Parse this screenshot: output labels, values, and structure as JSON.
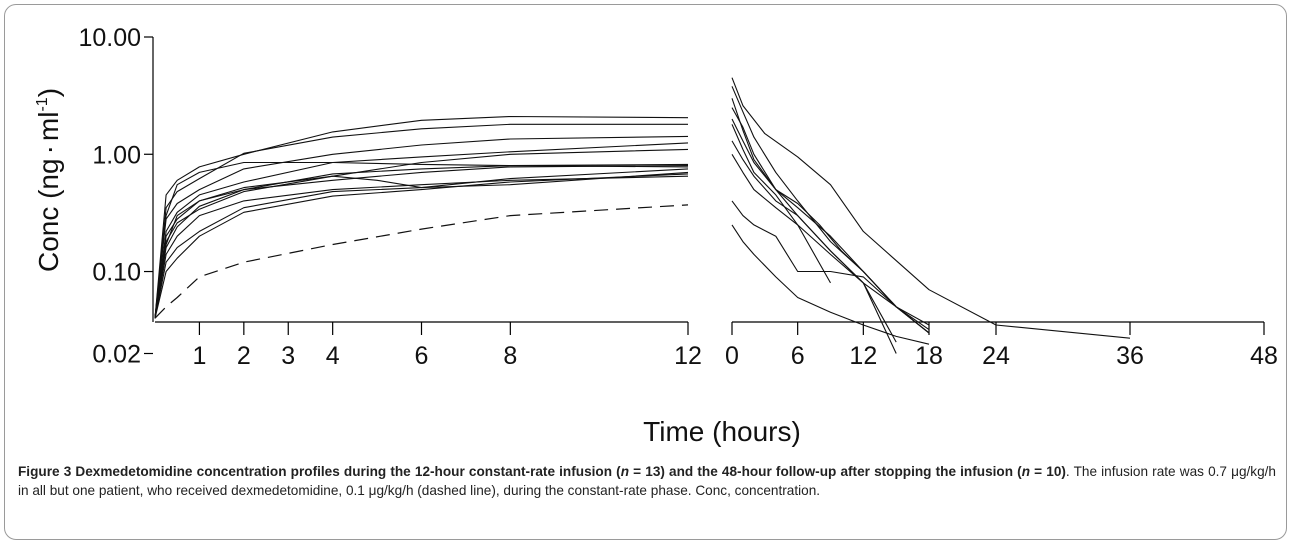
{
  "chart_data": {
    "type": "line",
    "ylabel": "Conc (ng · ml⁻¹)",
    "ylabel_parts": {
      "main": "Conc (ng",
      "dot": "·",
      "unit": "ml",
      "exponent": "-1",
      "close": ")"
    },
    "xlabel": "Time (hours)",
    "y_scale": "log",
    "ylim": [
      0.01,
      10
    ],
    "y_ticks": [
      {
        "value": 10,
        "label": "10.00"
      },
      {
        "value": 1,
        "label": "1.00"
      },
      {
        "value": 0.1,
        "label": "0.10"
      },
      {
        "value": 0.02,
        "label": "0.02"
      }
    ],
    "panels": [
      {
        "name": "infusion",
        "xlim": [
          0,
          12
        ],
        "x_ticks": [
          1,
          2,
          3,
          4,
          6,
          8,
          12
        ],
        "x_tick_labels": [
          "1",
          "2",
          "3",
          "4",
          "6",
          "8",
          "12"
        ],
        "series": [
          {
            "style": "solid",
            "x": [
              0,
              0.25,
              0.5,
              1,
              2,
              4,
              6,
              8,
              12
            ],
            "y": [
              0.04,
              0.45,
              0.6,
              0.78,
              1.0,
              1.55,
              1.95,
              2.1,
              2.05
            ]
          },
          {
            "style": "solid",
            "x": [
              0,
              0.25,
              0.5,
              1,
              2,
              4,
              6,
              8,
              12
            ],
            "y": [
              0.04,
              0.35,
              0.48,
              0.62,
              1.02,
              1.4,
              1.65,
              1.8,
              1.8
            ]
          },
          {
            "style": "solid",
            "x": [
              0,
              0.25,
              0.5,
              1,
              2,
              4,
              6,
              8,
              12
            ],
            "y": [
              0.04,
              0.28,
              0.38,
              0.5,
              0.75,
              1.0,
              1.2,
              1.35,
              1.42
            ]
          },
          {
            "style": "solid",
            "x": [
              0,
              0.25,
              0.5,
              1,
              2,
              4,
              6,
              8,
              12
            ],
            "y": [
              0.04,
              0.22,
              0.32,
              0.45,
              0.58,
              0.85,
              0.95,
              1.05,
              1.25
            ]
          },
          {
            "style": "solid",
            "x": [
              0,
              0.25,
              0.5,
              1,
              2,
              3,
              4,
              6,
              8,
              12
            ],
            "y": [
              0.04,
              0.3,
              0.55,
              0.7,
              0.85,
              0.85,
              0.85,
              0.82,
              0.8,
              0.78
            ]
          },
          {
            "style": "solid",
            "x": [
              0,
              0.25,
              0.5,
              1,
              2,
              4,
              6,
              8,
              12
            ],
            "y": [
              0.04,
              0.18,
              0.26,
              0.34,
              0.48,
              0.65,
              0.85,
              1.0,
              1.1
            ]
          },
          {
            "style": "solid",
            "x": [
              0,
              0.25,
              0.5,
              1,
              2,
              4,
              6,
              8,
              12
            ],
            "y": [
              0.04,
              0.17,
              0.3,
              0.4,
              0.5,
              0.6,
              0.7,
              0.78,
              0.8
            ]
          },
          {
            "style": "solid",
            "x": [
              0,
              0.25,
              0.5,
              1,
              2,
              4,
              6,
              8,
              12
            ],
            "y": [
              0.04,
              0.16,
              0.24,
              0.36,
              0.5,
              0.68,
              0.75,
              0.8,
              0.82
            ]
          },
          {
            "style": "solid",
            "x": [
              0,
              0.25,
              0.5,
              1,
              2,
              4,
              5,
              6,
              8,
              12
            ],
            "y": [
              0.04,
              0.2,
              0.28,
              0.4,
              0.52,
              0.65,
              0.6,
              0.52,
              0.62,
              0.75
            ]
          },
          {
            "style": "solid",
            "x": [
              0,
              0.25,
              0.5,
              1,
              2,
              4,
              6,
              8,
              12
            ],
            "y": [
              0.04,
              0.14,
              0.2,
              0.3,
              0.4,
              0.5,
              0.55,
              0.6,
              0.65
            ]
          },
          {
            "style": "solid",
            "x": [
              0,
              0.25,
              0.5,
              1,
              2,
              4,
              6,
              8,
              12
            ],
            "y": [
              0.04,
              0.12,
              0.16,
              0.22,
              0.35,
              0.48,
              0.52,
              0.55,
              0.7
            ]
          },
          {
            "style": "solid",
            "x": [
              0,
              0.25,
              0.5,
              1,
              2,
              4,
              6,
              8,
              12
            ],
            "y": [
              0.04,
              0.1,
              0.13,
              0.2,
              0.32,
              0.44,
              0.5,
              0.58,
              0.68
            ]
          },
          {
            "style": "dashed",
            "x": [
              0,
              0.25,
              0.5,
              1,
              2,
              4,
              6,
              8,
              12
            ],
            "y": [
              0.04,
              0.05,
              0.06,
              0.09,
              0.12,
              0.17,
              0.23,
              0.3,
              0.37
            ]
          }
        ]
      },
      {
        "name": "follow-up",
        "xlim": [
          0,
          48
        ],
        "x_ticks": [
          0,
          6,
          12,
          18,
          24,
          36,
          48
        ],
        "x_tick_labels": [
          "0",
          "6",
          "12",
          "18",
          "24",
          "36",
          "48"
        ],
        "series": [
          {
            "style": "solid",
            "x": [
              0,
              1,
              3,
              6,
              9,
              12,
              18,
              24,
              36
            ],
            "y": [
              4.5,
              2.6,
              1.5,
              0.95,
              0.55,
              0.22,
              0.07,
              0.035,
              0.027
            ]
          },
          {
            "style": "solid",
            "x": [
              0,
              1,
              2,
              4,
              6,
              9,
              12,
              15,
              18
            ],
            "y": [
              3.8,
              2.3,
              1.4,
              0.7,
              0.4,
              0.18,
              0.1,
              0.05,
              0.03
            ]
          },
          {
            "style": "solid",
            "x": [
              0,
              1,
              2,
              4,
              6,
              9,
              12,
              15,
              18
            ],
            "y": [
              3.0,
              1.6,
              0.9,
              0.5,
              0.35,
              0.2,
              0.1,
              0.05,
              0.035
            ]
          },
          {
            "style": "solid",
            "x": [
              0,
              1,
              2,
              4,
              6,
              9,
              12,
              15
            ],
            "y": [
              2.5,
              1.7,
              1.0,
              0.5,
              0.3,
              0.15,
              0.08,
              0.025
            ]
          },
          {
            "style": "solid",
            "x": [
              0,
              1,
              2,
              4,
              6,
              8,
              10,
              12,
              15,
              18
            ],
            "y": [
              2.0,
              1.3,
              0.85,
              0.5,
              0.38,
              0.25,
              0.15,
              0.1,
              0.05,
              0.032
            ]
          },
          {
            "style": "solid",
            "x": [
              0,
              1,
              2,
              4,
              6,
              9
            ],
            "y": [
              1.8,
              1.1,
              0.7,
              0.45,
              0.25,
              0.08
            ]
          },
          {
            "style": "solid",
            "x": [
              0,
              1,
              2,
              4,
              6,
              9,
              12,
              15,
              18
            ],
            "y": [
              1.3,
              0.9,
              0.65,
              0.4,
              0.3,
              0.15,
              0.08,
              0.05,
              0.03
            ]
          },
          {
            "style": "solid",
            "x": [
              0,
              1,
              2,
              4,
              6,
              9,
              12,
              15
            ],
            "y": [
              1.0,
              0.7,
              0.5,
              0.35,
              0.25,
              0.14,
              0.08,
              0.02
            ]
          },
          {
            "style": "solid",
            "x": [
              0,
              1,
              2,
              4,
              6,
              9,
              12,
              15,
              18
            ],
            "y": [
              0.4,
              0.3,
              0.25,
              0.2,
              0.1,
              0.1,
              0.09,
              0.05,
              0.03
            ]
          },
          {
            "style": "solid",
            "x": [
              0,
              1,
              2,
              4,
              6,
              9,
              12,
              15,
              18
            ],
            "y": [
              0.25,
              0.18,
              0.14,
              0.09,
              0.06,
              0.045,
              0.035,
              0.028,
              0.024
            ]
          }
        ]
      }
    ]
  },
  "caption": {
    "label": "Figure 3",
    "bold_1": " Dexmedetomidine concentration profiles during the 12-hour constant-rate infusion (",
    "n_1": "n",
    "bold_2": " = 13) and the 48-hour follow-up after stopping the infusion (",
    "n_2": "n",
    "bold_3": " = 10)",
    "rest": ". The infusion rate was 0.7 μg/kg/h in all but one patient, who received dexmedetomidine, 0.1 μg/kg/h (dashed line), during the constant-rate phase. Conc, concentration."
  }
}
